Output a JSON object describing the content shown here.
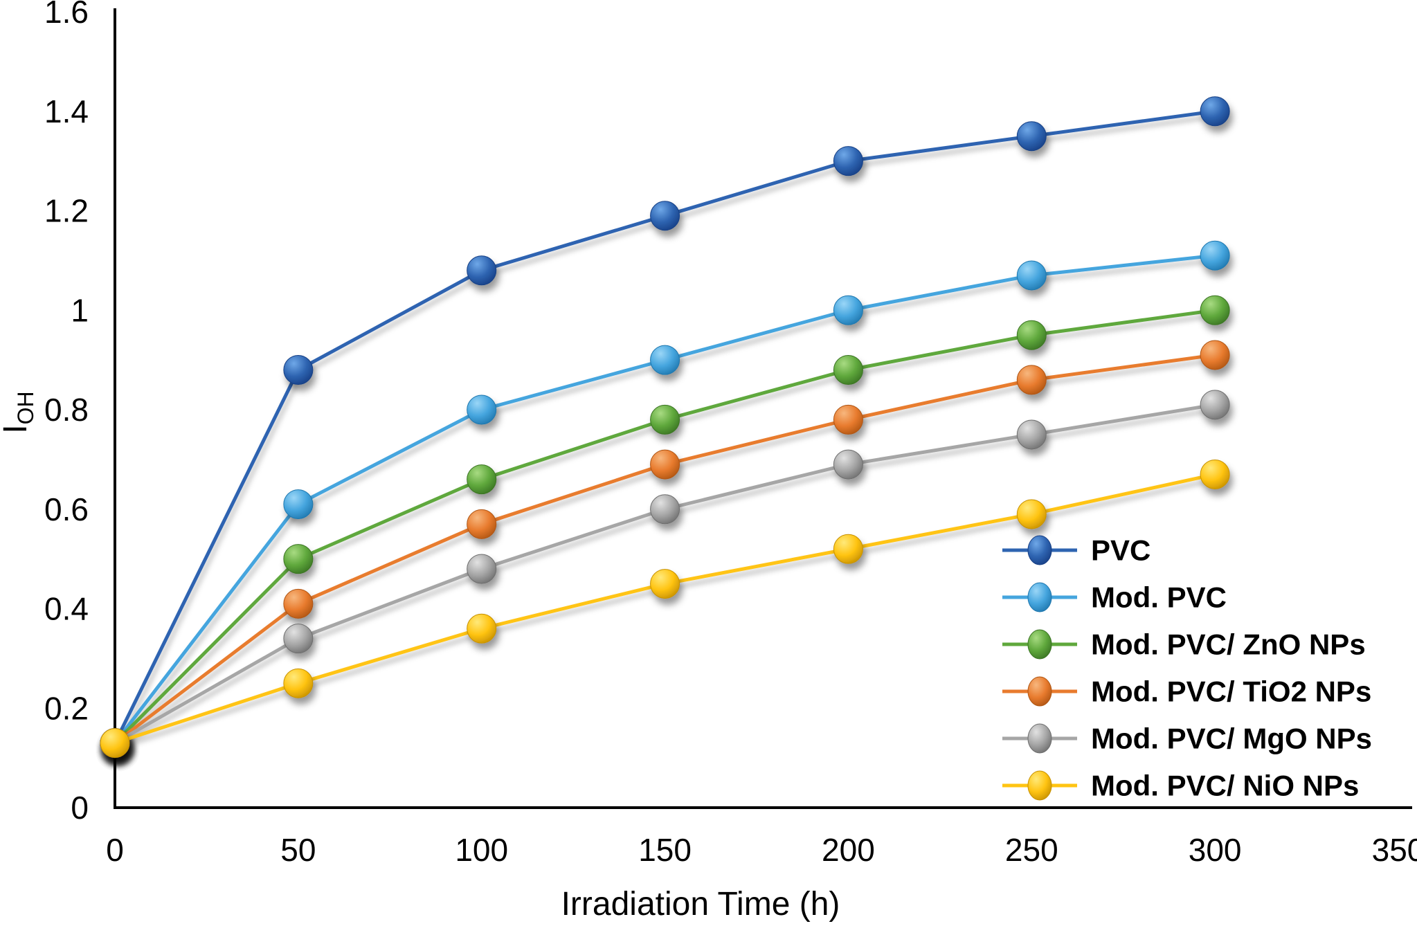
{
  "chart_data": {
    "type": "line",
    "x": [
      0,
      50,
      100,
      150,
      200,
      250,
      300
    ],
    "series": [
      {
        "name": "PVC",
        "color": "#2E64B1",
        "highlight": "#6FA8E8",
        "dark": "#173F85",
        "values": [
          0.13,
          0.88,
          1.08,
          1.19,
          1.3,
          1.35,
          1.4
        ]
      },
      {
        "name": "Mod. PVC",
        "color": "#45A5DE",
        "highlight": "#9AD6F7",
        "dark": "#1F77AE",
        "values": [
          0.13,
          0.61,
          0.8,
          0.9,
          1.0,
          1.07,
          1.11
        ]
      },
      {
        "name": "Mod. PVC/ ZnO NPs",
        "color": "#5FA83C",
        "highlight": "#A8DB82",
        "dark": "#3A7423",
        "values": [
          0.13,
          0.5,
          0.66,
          0.78,
          0.88,
          0.95,
          1.0
        ]
      },
      {
        "name": "Mod. PVC/ TiO2 NPs",
        "color": "#E87B2E",
        "highlight": "#F7B77E",
        "dark": "#AF5512",
        "values": [
          0.13,
          0.41,
          0.57,
          0.69,
          0.78,
          0.86,
          0.91
        ]
      },
      {
        "name": "Mod. PVC/ MgO NPs",
        "color": "#A6A6A6",
        "highlight": "#E2E2E2",
        "dark": "#6E6E6E",
        "values": [
          0.13,
          0.34,
          0.48,
          0.6,
          0.69,
          0.75,
          0.81
        ]
      },
      {
        "name": "Mod. PVC/ NiO NPs",
        "color": "#FFC412",
        "highlight": "#FFE97A",
        "dark": "#C79100",
        "values": [
          0.13,
          0.25,
          0.36,
          0.45,
          0.52,
          0.59,
          0.67
        ]
      }
    ],
    "xlabel": "Irradiation Time (h)",
    "ylabel_main": "I",
    "ylabel_sub": "OH",
    "xlim": [
      0,
      350
    ],
    "ylim": [
      0,
      1.6
    ],
    "xticks": [
      "0",
      "50",
      "100",
      "150",
      "200",
      "250",
      "300",
      "350"
    ],
    "yticks": [
      "0",
      "0.2",
      "0.4",
      "0.6",
      "0.8",
      "1",
      "1.2",
      "1.4",
      "1.6"
    ],
    "grid": false,
    "legend_position": "inside-bottom-right",
    "axis_color": "#000000"
  }
}
